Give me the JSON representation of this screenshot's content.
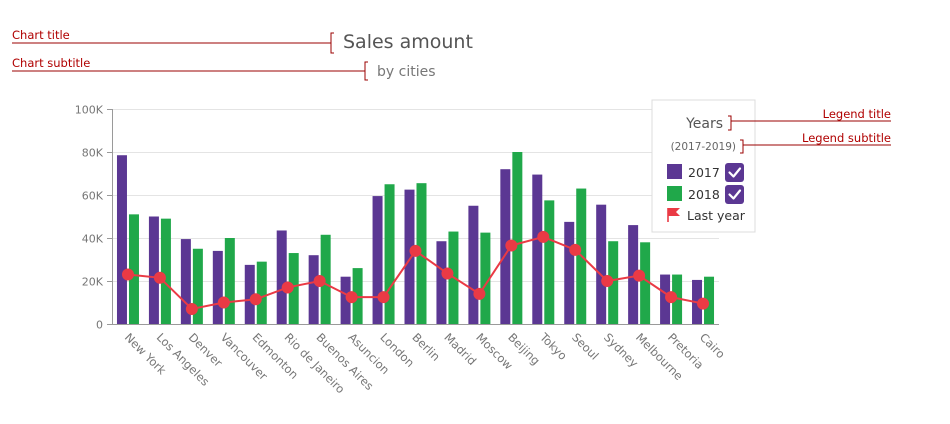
{
  "annotations": {
    "chart_title": "Chart title",
    "chart_subtitle": "Chart subtitle",
    "legend_title": "Legend title",
    "legend_subtitle": "Legend subtitle"
  },
  "colors": {
    "series_2017": "#5b3793",
    "series_2018": "#20a84a",
    "last_year": "#ea3a45",
    "annotation": "#9b0000"
  },
  "chart_data": {
    "type": "bar",
    "title": "Sales amount",
    "subtitle": "by cities",
    "xlabel": "",
    "ylabel": "",
    "ylim": [
      0,
      100000
    ],
    "yticks": [
      0,
      20000,
      40000,
      60000,
      80000,
      100000
    ],
    "ytick_labels": [
      "0",
      "20K",
      "40K",
      "60K",
      "80K",
      "100K"
    ],
    "grid": true,
    "categories": [
      "New York",
      "Los Angeles",
      "Denver",
      "Vancouver",
      "Edmonton",
      "Rio de Janeiro",
      "Buenos Aires",
      "Asuncion",
      "London",
      "Berlin",
      "Madrid",
      "Moscow",
      "Beijing",
      "Tokyo",
      "Seoul",
      "Sydney",
      "Melbourne",
      "Pretoria",
      "Cairo"
    ],
    "series": [
      {
        "name": "2017",
        "type": "bar",
        "values": [
          78500,
          50000,
          39500,
          34000,
          27500,
          43500,
          32000,
          22000,
          59500,
          62500,
          38500,
          55000,
          72000,
          69500,
          47500,
          55500,
          46000,
          23000,
          20500
        ]
      },
      {
        "name": "2018",
        "type": "bar",
        "values": [
          51000,
          49000,
          35000,
          40000,
          29000,
          33000,
          41500,
          26000,
          65000,
          65500,
          43000,
          42500,
          80000,
          57500,
          63000,
          38500,
          38000,
          23000,
          22000
        ]
      },
      {
        "name": "Last year",
        "type": "line",
        "values": [
          23000,
          21500,
          7000,
          10000,
          11500,
          17000,
          20000,
          12500,
          12500,
          34000,
          23500,
          14000,
          36500,
          40500,
          34500,
          20000,
          22500,
          12500,
          9500
        ]
      }
    ],
    "legend": {
      "title": "Years",
      "subtitle": "(2017-2019)",
      "placement": "top-right"
    }
  }
}
